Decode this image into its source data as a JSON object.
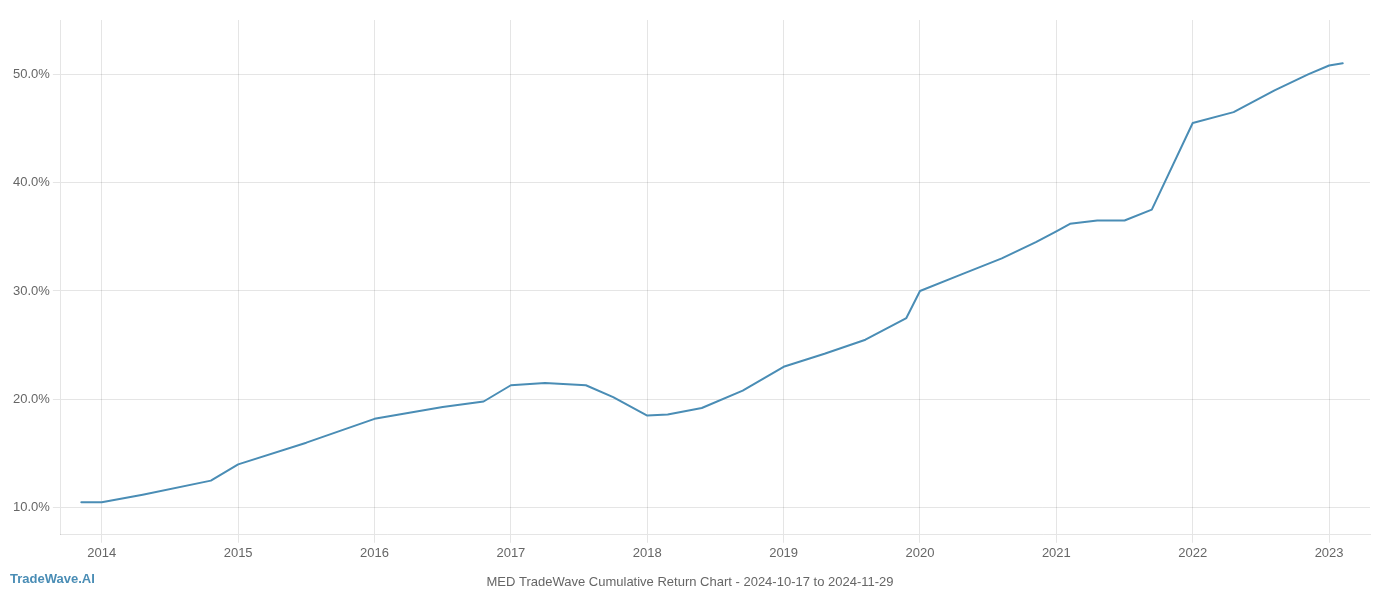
{
  "chart_data": {
    "type": "line",
    "title": "MED TradeWave Cumulative Return Chart - 2024-10-17 to 2024-11-29",
    "annotations": [
      "TradeWave.AI"
    ],
    "x": [
      2013.85,
      2014.0,
      2014.3,
      2014.8,
      2015.0,
      2015.5,
      2016.0,
      2016.5,
      2016.8,
      2017.0,
      2017.25,
      2017.55,
      2017.75,
      2018.0,
      2018.15,
      2018.4,
      2018.7,
      2019.0,
      2019.3,
      2019.6,
      2019.9,
      2020.0,
      2020.3,
      2020.6,
      2020.85,
      2021.0,
      2021.1,
      2021.3,
      2021.5,
      2021.7,
      2022.0,
      2022.3,
      2022.6,
      2022.85,
      2023.0,
      2023.1
    ],
    "values": [
      10.5,
      10.5,
      11.2,
      12.5,
      14.0,
      16.0,
      18.2,
      19.3,
      19.8,
      21.3,
      21.5,
      21.3,
      20.2,
      18.5,
      18.6,
      19.2,
      20.8,
      23.0,
      24.2,
      25.5,
      27.5,
      30.0,
      31.5,
      33.0,
      34.5,
      35.5,
      36.2,
      36.5,
      36.5,
      37.5,
      45.5,
      46.5,
      48.5,
      50.0,
      50.8,
      51.0
    ],
    "color": "#4a8db5",
    "xlim": [
      2013.7,
      2023.3
    ],
    "xticks": [
      2014,
      2015,
      2016,
      2017,
      2018,
      2019,
      2020,
      2021,
      2022,
      2023
    ],
    "ylim": [
      7.5,
      55
    ],
    "yticks": [
      {
        "value": 10.0,
        "label": "10.0%"
      },
      {
        "value": 20.0,
        "label": "20.0%"
      },
      {
        "value": 30.0,
        "label": "30.0%"
      },
      {
        "value": 40.0,
        "label": "40.0%"
      },
      {
        "value": 50.0,
        "label": "50.0%"
      }
    ],
    "grid": true
  }
}
